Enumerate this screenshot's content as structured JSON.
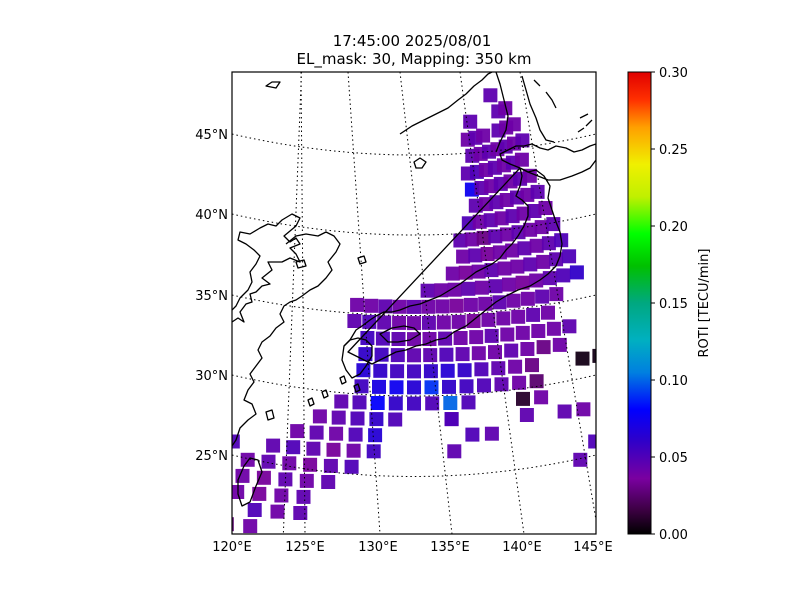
{
  "figure": {
    "title_line1": "17:45:00 2025/08/01",
    "title_line2": "EL_mask: 30, Mapping: 350 km"
  },
  "map": {
    "lon_labels": [
      "120°E",
      "125°E",
      "130°E",
      "135°E",
      "140°E",
      "145°E"
    ],
    "lat_labels": [
      "45°N",
      "40°N",
      "35°N",
      "30°N",
      "25°N"
    ],
    "lon_range": [
      120,
      145
    ],
    "lat_range": [
      20,
      49
    ],
    "gridlines": "dotted",
    "coastline_color": "#000000"
  },
  "colorbar": {
    "label": "ROTI [TECU/min]",
    "ticks": [
      "0.30",
      "0.25",
      "0.20",
      "0.15",
      "0.10",
      "0.05",
      "0.00"
    ],
    "range": [
      0,
      0.3
    ],
    "colormap": "nipy_spectral"
  },
  "chart_data": {
    "type": "heatmap",
    "title": "17:45:00 2025/08/01 EL_mask: 30, Mapping: 350 km",
    "colorbar_label": "ROTI [TECU/min]",
    "vmin": 0,
    "vmax": 0.3,
    "cells": [
      [
        128.5,
        35.5,
        0.04
      ],
      [
        129.5,
        35.5,
        0.04
      ],
      [
        130.5,
        35.5,
        0.045
      ],
      [
        131.5,
        35.5,
        0.04
      ],
      [
        132.5,
        35.5,
        0.045
      ],
      [
        133.5,
        35.5,
        0.04
      ],
      [
        134.5,
        35.5,
        0.04
      ],
      [
        135.5,
        35.5,
        0.035
      ],
      [
        136.5,
        35.5,
        0.04
      ],
      [
        137.5,
        35.5,
        0.04
      ],
      [
        138.5,
        35.5,
        0.045
      ],
      [
        139.5,
        35.5,
        0.04
      ],
      [
        140.5,
        35.5,
        0.04
      ],
      [
        141.5,
        35.5,
        0.045
      ],
      [
        142.5,
        35.5,
        0.04
      ],
      [
        128.5,
        34.5,
        0.045
      ],
      [
        129.5,
        34.5,
        0.05
      ],
      [
        130.5,
        34.5,
        0.045
      ],
      [
        131.5,
        34.5,
        0.04
      ],
      [
        132.5,
        34.5,
        0.04
      ],
      [
        133.5,
        34.5,
        0.045
      ],
      [
        134.5,
        34.5,
        0.04
      ],
      [
        135.5,
        34.5,
        0.04
      ],
      [
        136.5,
        34.5,
        0.035
      ],
      [
        137.5,
        34.5,
        0.04
      ],
      [
        138.5,
        34.5,
        0.04
      ],
      [
        139.5,
        34.5,
        0.04
      ],
      [
        140.5,
        34.5,
        0.045
      ],
      [
        141.5,
        34.5,
        0.04
      ],
      [
        129.5,
        33.5,
        0.055
      ],
      [
        130.5,
        33.5,
        0.05
      ],
      [
        131.5,
        33.5,
        0.045
      ],
      [
        132.5,
        33.5,
        0.04
      ],
      [
        133.5,
        33.5,
        0.04
      ],
      [
        134.5,
        33.5,
        0.045
      ],
      [
        135.5,
        33.5,
        0.04
      ],
      [
        136.5,
        33.5,
        0.04
      ],
      [
        137.5,
        33.5,
        0.045
      ],
      [
        138.5,
        33.5,
        0.04
      ],
      [
        139.5,
        33.5,
        0.04
      ],
      [
        140.5,
        33.5,
        0.04
      ],
      [
        141.5,
        33.5,
        0.04
      ],
      [
        129.5,
        32.5,
        0.06
      ],
      [
        130.5,
        32.5,
        0.055
      ],
      [
        131.5,
        32.5,
        0.05
      ],
      [
        132.5,
        32.5,
        0.045
      ],
      [
        133.5,
        32.5,
        0.045
      ],
      [
        134.5,
        32.5,
        0.05
      ],
      [
        135.5,
        32.5,
        0.045
      ],
      [
        136.5,
        32.5,
        0.04
      ],
      [
        137.5,
        32.5,
        0.04
      ],
      [
        138.5,
        32.5,
        0.045
      ],
      [
        139.5,
        32.5,
        0.04
      ],
      [
        129.5,
        31.5,
        0.065
      ],
      [
        130.5,
        31.5,
        0.06
      ],
      [
        131.5,
        31.5,
        0.055
      ],
      [
        132.5,
        31.5,
        0.055
      ],
      [
        133.5,
        31.5,
        0.06
      ],
      [
        134.5,
        31.5,
        0.065
      ],
      [
        135.5,
        31.5,
        0.06
      ],
      [
        136.5,
        31.5,
        0.05
      ],
      [
        137.5,
        31.5,
        0.045
      ],
      [
        138.5,
        31.5,
        0.04
      ],
      [
        139.5,
        31.5,
        0.03
      ],
      [
        129.5,
        30.5,
        0.055
      ],
      [
        130.5,
        30.5,
        0.07
      ],
      [
        131.5,
        30.5,
        0.075
      ],
      [
        132.5,
        30.5,
        0.065
      ],
      [
        133.5,
        30.5,
        0.09
      ],
      [
        134.5,
        30.5,
        0.06
      ],
      [
        135.5,
        30.5,
        0.055
      ],
      [
        136.5,
        30.5,
        0.05
      ],
      [
        137.5,
        30.5,
        0.045
      ],
      [
        138.5,
        30.5,
        0.04
      ],
      [
        139.5,
        30.5,
        0.025
      ],
      [
        128.5,
        29.5,
        0.045
      ],
      [
        129.5,
        29.5,
        0.05
      ],
      [
        130.5,
        29.5,
        0.08
      ],
      [
        131.5,
        29.5,
        0.06
      ],
      [
        132.5,
        29.5,
        0.055
      ],
      [
        133.5,
        29.5,
        0.05
      ],
      [
        134.5,
        29.5,
        0.1
      ],
      [
        135.5,
        29.5,
        0.05
      ],
      [
        127.5,
        28.5,
        0.04
      ],
      [
        128.5,
        28.5,
        0.045
      ],
      [
        129.5,
        28.5,
        0.05
      ],
      [
        130.5,
        28.5,
        0.06
      ],
      [
        131.5,
        28.5,
        0.05
      ],
      [
        134.5,
        28.5,
        0.045
      ],
      [
        126.5,
        27.5,
        0.04
      ],
      [
        127.5,
        27.5,
        0.045
      ],
      [
        128.5,
        27.5,
        0.04
      ],
      [
        129.5,
        27.5,
        0.05
      ],
      [
        130.5,
        27.5,
        0.065
      ],
      [
        125.5,
        26.5,
        0.045
      ],
      [
        126.5,
        26.5,
        0.05
      ],
      [
        127.5,
        26.5,
        0.045
      ],
      [
        128.5,
        26.5,
        0.035
      ],
      [
        129.5,
        26.5,
        0.04
      ],
      [
        130.5,
        26.5,
        0.055
      ],
      [
        124.5,
        25.5,
        0.04
      ],
      [
        125.5,
        25.5,
        0.045
      ],
      [
        126.5,
        25.5,
        0.04
      ],
      [
        127.5,
        25.5,
        0.035
      ],
      [
        128.5,
        25.5,
        0.045
      ],
      [
        129.5,
        25.5,
        0.05
      ],
      [
        124.5,
        24.5,
        0.04
      ],
      [
        125.5,
        24.5,
        0.035
      ],
      [
        126.5,
        24.5,
        0.045
      ],
      [
        127.5,
        24.5,
        0.04
      ],
      [
        128.5,
        24.5,
        0.045
      ],
      [
        124.5,
        23.5,
        0.04
      ],
      [
        125.5,
        23.5,
        0.035
      ],
      [
        126.5,
        23.5,
        0.04
      ],
      [
        127.5,
        23.5,
        0.045
      ],
      [
        125.5,
        22.5,
        0.05
      ],
      [
        126.5,
        22.5,
        0.04
      ],
      [
        127.5,
        22.5,
        0.045
      ],
      [
        123.5,
        21.5,
        0.02
      ],
      [
        124.5,
        21.5,
        0.025
      ],
      [
        125.5,
        21.5,
        0.04
      ],
      [
        123.5,
        20.7,
        0.025
      ],
      [
        124.5,
        20.7,
        0.03
      ],
      [
        122.5,
        26.5,
        0.04
      ],
      [
        121.5,
        27.5,
        0.045
      ],
      [
        123.5,
        26.5,
        0.05
      ],
      [
        122.5,
        25.5,
        0.04
      ],
      [
        140.5,
        28.5,
        0.045
      ],
      [
        141.5,
        28.5,
        0.04
      ],
      [
        142.5,
        27.5,
        0.045
      ],
      [
        141.5,
        26.5,
        0.05
      ],
      [
        140.5,
        25.5,
        0.045
      ],
      [
        141.5,
        24.5,
        0.04
      ],
      [
        143.5,
        26.5,
        0.04
      ],
      [
        144.5,
        25.5,
        0.045
      ],
      [
        143.5,
        29.5,
        0.045
      ],
      [
        139.5,
        29.5,
        0.04
      ],
      [
        138.5,
        28.5,
        0.045
      ],
      [
        138.5,
        29.5,
        0.01
      ],
      [
        143.5,
        31.5,
        0.005
      ],
      [
        142.5,
        31.5,
        0.005
      ],
      [
        140.5,
        32.5,
        0.03
      ],
      [
        141.5,
        32.5,
        0.04
      ],
      [
        142.5,
        33.5,
        0.045
      ],
      [
        134.5,
        26.5,
        0.045
      ],
      [
        135.5,
        27.5,
        0.05
      ],
      [
        136.5,
        27.5,
        0.045
      ],
      [
        134.5,
        28.5,
        0.05
      ],
      [
        133.5,
        36.5,
        0.045
      ],
      [
        134.5,
        36.5,
        0.04
      ],
      [
        135.5,
        36.5,
        0.04
      ],
      [
        136.5,
        36.5,
        0.045
      ],
      [
        137.5,
        36.5,
        0.04
      ],
      [
        138.5,
        36.5,
        0.045
      ],
      [
        139.5,
        36.5,
        0.04
      ],
      [
        140.5,
        36.5,
        0.035
      ],
      [
        141.5,
        36.5,
        0.04
      ],
      [
        142.5,
        36.5,
        0.045
      ],
      [
        143.5,
        36.5,
        0.05
      ],
      [
        144.5,
        36.5,
        0.06
      ],
      [
        135.5,
        37.5,
        0.04
      ],
      [
        136.5,
        37.5,
        0.035
      ],
      [
        137.5,
        37.5,
        0.04
      ],
      [
        138.5,
        37.5,
        0.045
      ],
      [
        139.5,
        37.5,
        0.04
      ],
      [
        140.5,
        37.5,
        0.04
      ],
      [
        141.5,
        37.5,
        0.045
      ],
      [
        142.5,
        37.5,
        0.04
      ],
      [
        143.5,
        37.5,
        0.045
      ],
      [
        144.5,
        37.5,
        0.05
      ],
      [
        136.5,
        38.5,
        0.04
      ],
      [
        137.5,
        38.5,
        0.045
      ],
      [
        138.5,
        38.5,
        0.035
      ],
      [
        139.5,
        38.5,
        0.04
      ],
      [
        140.5,
        38.5,
        0.04
      ],
      [
        141.5,
        38.5,
        0.045
      ],
      [
        142.5,
        38.5,
        0.04
      ],
      [
        143.5,
        38.5,
        0.045
      ],
      [
        144.5,
        38.5,
        0.05
      ],
      [
        136.5,
        39.5,
        0.045
      ],
      [
        137.5,
        39.5,
        0.04
      ],
      [
        138.5,
        39.5,
        0.03
      ],
      [
        139.5,
        39.5,
        0.045
      ],
      [
        140.5,
        39.5,
        0.04
      ],
      [
        141.5,
        39.5,
        0.045
      ],
      [
        142.5,
        39.5,
        0.04
      ],
      [
        143.5,
        39.5,
        0.04
      ],
      [
        144.5,
        39.5,
        0.045
      ],
      [
        137.5,
        40.5,
        0.05
      ],
      [
        138.5,
        40.5,
        0.04
      ],
      [
        139.5,
        40.5,
        0.045
      ],
      [
        140.5,
        40.5,
        0.04
      ],
      [
        141.5,
        40.5,
        0.045
      ],
      [
        142.5,
        40.5,
        0.04
      ],
      [
        143.5,
        40.5,
        0.045
      ],
      [
        144.5,
        40.5,
        0.04
      ],
      [
        138.5,
        41.5,
        0.045
      ],
      [
        139.5,
        41.5,
        0.04
      ],
      [
        140.5,
        41.5,
        0.045
      ],
      [
        141.5,
        41.5,
        0.04
      ],
      [
        142.5,
        41.5,
        0.045
      ],
      [
        143.5,
        41.5,
        0.04
      ],
      [
        144.5,
        41.5,
        0.045
      ],
      [
        138.5,
        42.5,
        0.075
      ],
      [
        139.5,
        42.5,
        0.045
      ],
      [
        140.5,
        42.5,
        0.04
      ],
      [
        141.5,
        42.5,
        0.045
      ],
      [
        142.5,
        42.5,
        0.04
      ],
      [
        143.5,
        42.5,
        0.045
      ],
      [
        144.5,
        42.5,
        0.04
      ],
      [
        138.5,
        43.5,
        0.045
      ],
      [
        139.5,
        43.5,
        0.05
      ],
      [
        140.5,
        43.5,
        0.04
      ],
      [
        141.5,
        43.5,
        0.045
      ],
      [
        142.5,
        43.5,
        0.04
      ],
      [
        143.5,
        43.5,
        0.045
      ],
      [
        144.5,
        43.5,
        0.04
      ],
      [
        139.5,
        44.5,
        0.045
      ],
      [
        140.5,
        44.5,
        0.04
      ],
      [
        141.5,
        44.5,
        0.045
      ],
      [
        142.5,
        44.5,
        0.04
      ],
      [
        143.5,
        44.5,
        0.045
      ],
      [
        144.5,
        44.5,
        0.04
      ],
      [
        139.5,
        45.5,
        0.04
      ],
      [
        140.5,
        45.5,
        0.045
      ],
      [
        141.5,
        45.5,
        0.04
      ],
      [
        143.5,
        45.5,
        0.045
      ],
      [
        144.5,
        45.5,
        0.04
      ],
      [
        140.5,
        46.5,
        0.045
      ],
      [
        144.5,
        46.5,
        0.045
      ],
      [
        145.5,
        45.5,
        0.04
      ],
      [
        144.5,
        47.5,
        0.045
      ],
      [
        145.5,
        46.5,
        0.04
      ],
      [
        145.5,
        44.5,
        0.045
      ]
    ]
  }
}
